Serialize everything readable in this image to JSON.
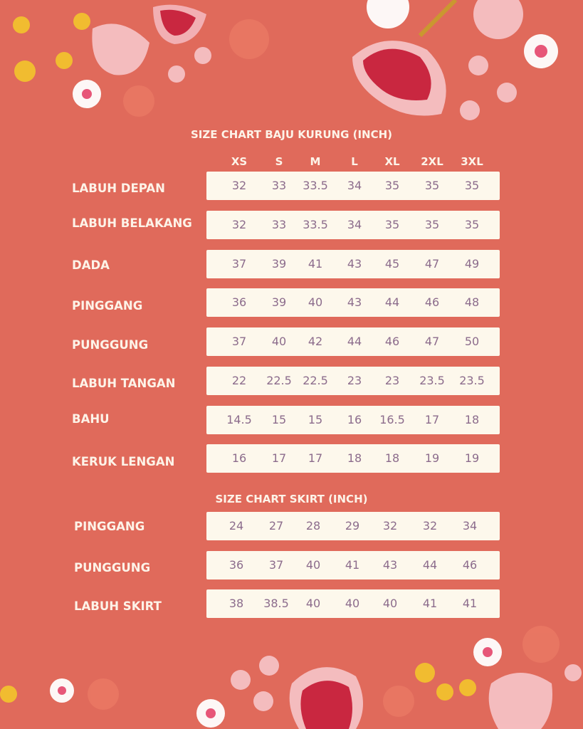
{
  "baju": {
    "title": "SIZE CHART BAJU KURUNG (INCH)",
    "sizes": [
      "XS",
      "S",
      "M",
      "L",
      "XL",
      "2XL",
      "3XL"
    ],
    "rows": [
      {
        "label": "LABUH DEPAN",
        "values": [
          "32",
          "33",
          "33.5",
          "34",
          "35",
          "35",
          "35"
        ]
      },
      {
        "label": "LABUH BELAKANG",
        "values": [
          "32",
          "33",
          "33.5",
          "34",
          "35",
          "35",
          "35"
        ]
      },
      {
        "label": "DADA",
        "values": [
          "37",
          "39",
          "41",
          "43",
          "45",
          "47",
          "49"
        ]
      },
      {
        "label": "PINGGANG",
        "values": [
          "36",
          "39",
          "40",
          "43",
          "44",
          "46",
          "48"
        ]
      },
      {
        "label": "PUNGGUNG",
        "values": [
          "37",
          "40",
          "42",
          "44",
          "46",
          "47",
          "50"
        ]
      },
      {
        "label": "LABUH TANGAN",
        "values": [
          "22",
          "22.5",
          "22.5",
          "23",
          "23",
          "23.5",
          "23.5"
        ]
      },
      {
        "label": "BAHU",
        "values": [
          "14.5",
          "15",
          "15",
          "16",
          "16.5",
          "17",
          "18"
        ]
      },
      {
        "label": "KERUK LENGAN",
        "values": [
          "16",
          "17",
          "17",
          "18",
          "18",
          "19",
          "19"
        ]
      }
    ]
  },
  "skirt": {
    "title": "SIZE CHART SKIRT (INCH)",
    "rows": [
      {
        "label": "PINGGANG",
        "values": [
          "24",
          "27",
          "28",
          "29",
          "32",
          "32",
          "34"
        ]
      },
      {
        "label": "PUNGGUNG",
        "values": [
          "36",
          "37",
          "40",
          "41",
          "43",
          "44",
          "46"
        ]
      },
      {
        "label": "LABUH SKIRT",
        "values": [
          "38",
          "38.5",
          "40",
          "40",
          "40",
          "41",
          "41"
        ]
      }
    ]
  },
  "colors": {
    "background": "#e06a5b",
    "row": "#fdf8ec",
    "value_text": "#8c6c8c",
    "label_text": "#fdf3e8"
  },
  "icons": [
    "floral-border-top",
    "floral-border-bottom"
  ]
}
